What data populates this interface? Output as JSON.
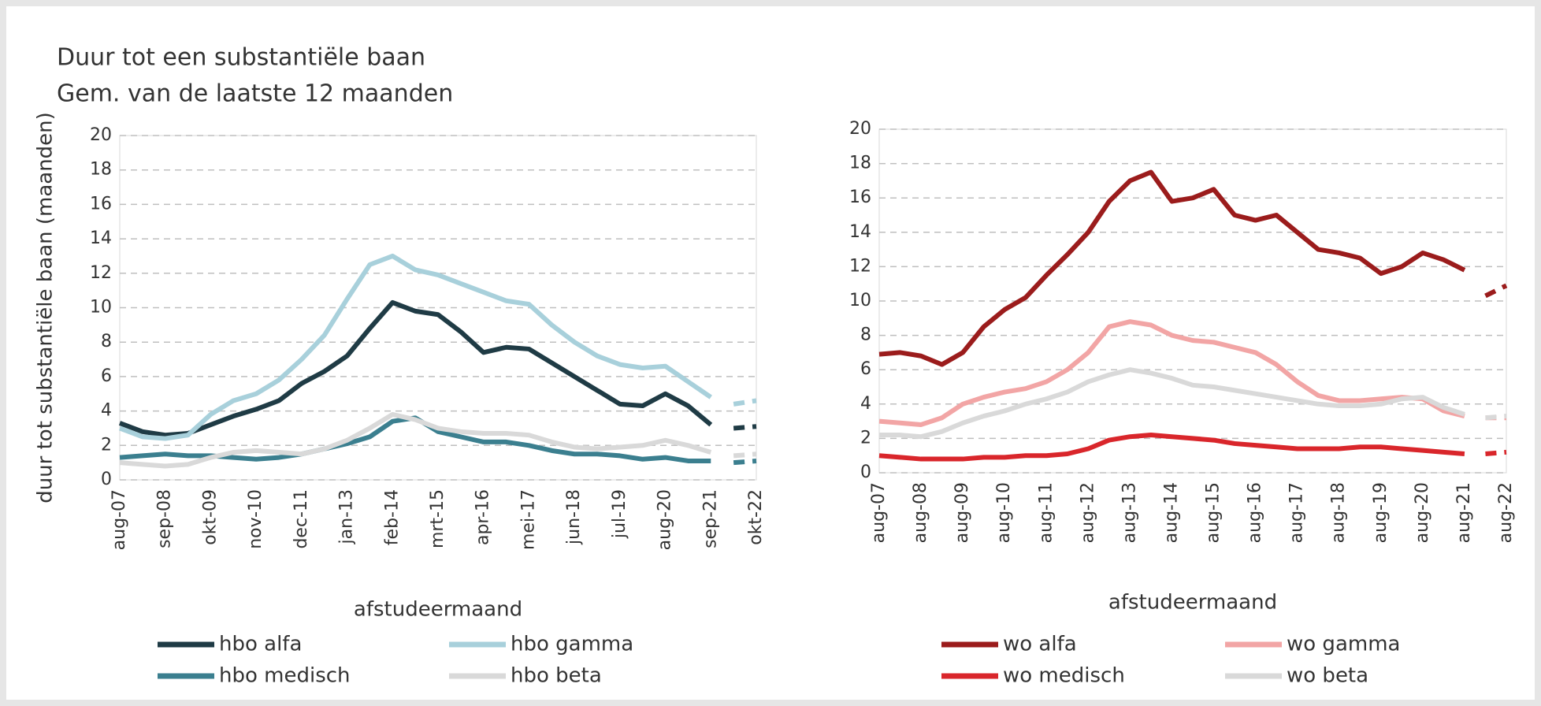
{
  "chart_data": [
    {
      "type": "line",
      "title": "Duur tot een substantiële baan",
      "subtitle": "Gem. van de laatste 12 maanden",
      "y_label": "duur tot substantiële baan (maanden)",
      "x_label": "afstudeermaand",
      "categories": [
        "aug-07",
        null,
        "sep-08",
        null,
        "okt-09",
        null,
        "nov-10",
        null,
        "dec-11",
        null,
        "jan-13",
        null,
        "feb-14",
        null,
        "mrt-15",
        null,
        "apr-16",
        null,
        "mei-17",
        null,
        "jun-18",
        null,
        "jul-19",
        null,
        "aug-20",
        null,
        "sep-21",
        null,
        "okt-22"
      ],
      "ylim": [
        0,
        20
      ],
      "yticks": [
        0,
        2,
        4,
        6,
        8,
        10,
        12,
        14,
        16,
        18,
        20
      ],
      "grid": true,
      "dashed_from": 27,
      "series": [
        {
          "name": "hbo alfa",
          "color": "#1f3b45",
          "values": [
            3.3,
            2.8,
            2.6,
            2.7,
            3.2,
            3.7,
            4.1,
            4.6,
            5.6,
            6.3,
            7.2,
            8.8,
            10.3,
            9.8,
            9.6,
            8.6,
            7.4,
            7.7,
            7.6,
            6.8,
            6.0,
            5.2,
            4.4,
            4.3,
            5.0,
            4.3,
            3.2,
            3.0,
            3.1
          ]
        },
        {
          "name": "hbo gamma",
          "color": "#a8d0db",
          "values": [
            3.0,
            2.5,
            2.4,
            2.6,
            3.8,
            4.6,
            5.0,
            5.8,
            7.0,
            8.4,
            10.5,
            12.5,
            13.0,
            12.2,
            11.9,
            11.4,
            10.9,
            10.4,
            10.2,
            9.0,
            8.0,
            7.2,
            6.7,
            6.5,
            6.6,
            5.7,
            4.8,
            4.4,
            4.6
          ]
        },
        {
          "name": "hbo medisch",
          "color": "#3b7f8f",
          "values": [
            1.3,
            1.4,
            1.5,
            1.4,
            1.4,
            1.3,
            1.2,
            1.3,
            1.5,
            1.8,
            2.1,
            2.5,
            3.4,
            3.6,
            2.8,
            2.5,
            2.2,
            2.2,
            2.0,
            1.7,
            1.5,
            1.5,
            1.4,
            1.2,
            1.3,
            1.1,
            1.1,
            1.0,
            1.1
          ]
        },
        {
          "name": "hbo beta",
          "color": "#d9d9d9",
          "values": [
            1.0,
            0.9,
            0.8,
            0.9,
            1.3,
            1.6,
            1.7,
            1.6,
            1.5,
            1.8,
            2.3,
            3.0,
            3.8,
            3.5,
            3.0,
            2.8,
            2.7,
            2.7,
            2.6,
            2.2,
            1.9,
            1.8,
            1.9,
            2.0,
            2.3,
            2.0,
            1.6,
            1.4,
            1.5
          ]
        }
      ]
    },
    {
      "type": "line",
      "x_label": "afstudeermaand",
      "categories": [
        "aug-07",
        null,
        "aug-08",
        null,
        "aug-09",
        null,
        "aug-10",
        null,
        "aug-11",
        null,
        "aug-12",
        null,
        "aug-13",
        null,
        "aug-14",
        null,
        "aug-15",
        null,
        "aug-16",
        null,
        "aug-17",
        null,
        "aug-18",
        null,
        "aug-19",
        null,
        "aug-20",
        null,
        "aug-21",
        null,
        "aug-22"
      ],
      "ylim": [
        0,
        20
      ],
      "yticks": [
        0,
        2,
        4,
        6,
        8,
        10,
        12,
        14,
        16,
        18,
        20
      ],
      "grid": true,
      "dashed_from": 29,
      "series": [
        {
          "name": "wo alfa",
          "color": "#9b1c1c",
          "values": [
            6.9,
            7.0,
            6.8,
            6.3,
            7.0,
            8.5,
            9.5,
            10.2,
            11.5,
            12.7,
            14.0,
            15.8,
            17.0,
            17.5,
            15.8,
            16.0,
            16.5,
            15.0,
            14.7,
            15.0,
            14.0,
            13.0,
            12.8,
            12.5,
            11.6,
            12.0,
            12.8,
            12.4,
            11.8,
            10.3,
            10.9
          ]
        },
        {
          "name": "wo gamma",
          "color": "#f2a5a5",
          "values": [
            3.0,
            2.9,
            2.8,
            3.2,
            4.0,
            4.4,
            4.7,
            4.9,
            5.3,
            6.0,
            7.0,
            8.5,
            8.8,
            8.6,
            8.0,
            7.7,
            7.6,
            7.3,
            7.0,
            6.3,
            5.3,
            4.5,
            4.2,
            4.2,
            4.3,
            4.4,
            4.3,
            3.6,
            3.3,
            3.2,
            3.2
          ]
        },
        {
          "name": "wo medisch",
          "color": "#d9262b",
          "values": [
            1.0,
            0.9,
            0.8,
            0.8,
            0.8,
            0.9,
            0.9,
            1.0,
            1.0,
            1.1,
            1.4,
            1.9,
            2.1,
            2.2,
            2.1,
            2.0,
            1.9,
            1.7,
            1.6,
            1.5,
            1.4,
            1.4,
            1.4,
            1.5,
            1.5,
            1.4,
            1.3,
            1.2,
            1.1,
            1.1,
            1.2
          ]
        },
        {
          "name": "wo beta",
          "color": "#d9d9d9",
          "values": [
            2.2,
            2.2,
            2.1,
            2.4,
            2.9,
            3.3,
            3.6,
            4.0,
            4.3,
            4.7,
            5.3,
            5.7,
            6.0,
            5.8,
            5.5,
            5.1,
            5.0,
            4.8,
            4.6,
            4.4,
            4.2,
            4.0,
            3.9,
            3.9,
            4.0,
            4.3,
            4.4,
            3.8,
            3.4,
            3.2,
            3.3
          ]
        }
      ]
    }
  ]
}
